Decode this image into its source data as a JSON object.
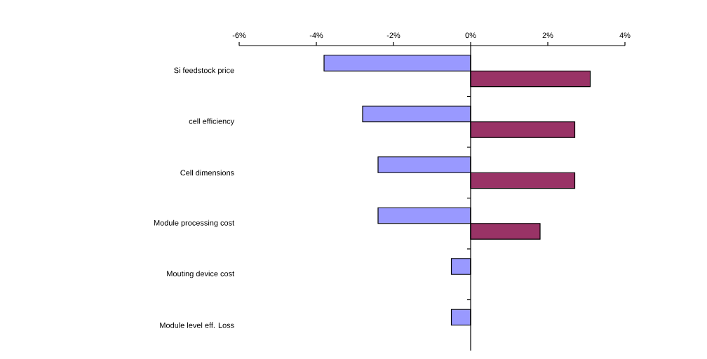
{
  "chart_data": {
    "type": "bar",
    "orientation": "horizontal",
    "categories": [
      "Si feedstock price",
      "cell efficiency",
      "Cell dimensions",
      "Module processing cost",
      "Mouting device cost",
      "Module level eff. Loss"
    ],
    "series": [
      {
        "color": "#9999ff",
        "values": [
          -3.8,
          -2.8,
          -2.4,
          -2.4,
          -0.5,
          -0.5
        ]
      },
      {
        "color": "#993366",
        "values": [
          3.1,
          2.7,
          2.7,
          1.8,
          null,
          null
        ]
      }
    ],
    "xlim": [
      -6,
      4
    ],
    "xticks": [
      {
        "value": -6,
        "label": "-6%"
      },
      {
        "value": -4,
        "label": "-4%"
      },
      {
        "value": -2,
        "label": "-2%"
      },
      {
        "value": 0,
        "label": "0%"
      },
      {
        "value": 2,
        "label": "2%"
      },
      {
        "value": 4,
        "label": "4%"
      }
    ]
  }
}
